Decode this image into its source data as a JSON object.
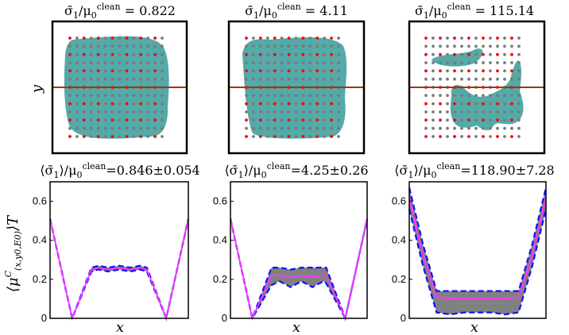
{
  "colors": {
    "fill": "#53aaa8",
    "dot_red": "#ff0000",
    "dot_gray": "#7a7a7a",
    "cut_line": "#9a3b0f",
    "band": "#808080",
    "mean": "#ff33ff",
    "envelope": "#1010ff",
    "frame": "#000000"
  },
  "axis_labels": {
    "y_top": "y",
    "x_bottom": "x",
    "y_bottom": "⟨μ^C_(x,y0,E0)⟩T"
  },
  "chart_data": [
    {
      "type": "map",
      "panel": 1,
      "title": "σ̄1/μ0^clean = 0.822",
      "title_value": "0.822",
      "description_region": "compact blob"
    },
    {
      "type": "map",
      "panel": 2,
      "title": "σ̄1/μ0^clean = 4.11",
      "title_value": "4.11",
      "description_region": "compact blob"
    },
    {
      "type": "map",
      "panel": 3,
      "title": "σ̄1/μ0^clean = 115.14",
      "title_value": "115.14",
      "description_region": "fragmented"
    },
    {
      "type": "line",
      "panel": 4,
      "title": "⟨σ̄1⟩/μ0^clean =0.846±0.054",
      "title_value": "=0.846±0.054",
      "xlabel": "x",
      "ylabel": "⟨μ^C⟩T",
      "ylim": [
        0,
        0.7
      ],
      "yticks": [
        0,
        0.2,
        0.4,
        0.6
      ],
      "series": [
        {
          "name": "mean",
          "x": [
            0,
            0.16,
            0.3,
            0.35,
            0.42,
            0.5,
            0.58,
            0.65,
            0.7,
            0.84,
            1
          ],
          "values": [
            0.51,
            0,
            0.25,
            0.26,
            0.25,
            0.26,
            0.25,
            0.26,
            0.25,
            0,
            0.51
          ]
        },
        {
          "name": "upper",
          "x": [
            0,
            0.16,
            0.3,
            0.35,
            0.42,
            0.5,
            0.58,
            0.65,
            0.7,
            0.84,
            1
          ],
          "values": [
            0.51,
            0,
            0.26,
            0.27,
            0.26,
            0.27,
            0.26,
            0.27,
            0.26,
            0,
            0.51
          ]
        },
        {
          "name": "lower",
          "x": [
            0,
            0.16,
            0.3,
            0.35,
            0.42,
            0.5,
            0.58,
            0.65,
            0.7,
            0.84,
            1
          ],
          "values": [
            0.51,
            0,
            0.24,
            0.25,
            0.24,
            0.25,
            0.24,
            0.25,
            0.24,
            0,
            0.51
          ]
        }
      ]
    },
    {
      "type": "line",
      "panel": 5,
      "title": "⟨σ̄1⟩/μ0^clean =4.25±0.26",
      "title_value": "=4.25±0.26",
      "xlabel": "x",
      "ylim": [
        0,
        0.7
      ],
      "yticks": [
        0,
        0.2,
        0.4,
        0.6
      ],
      "series": [
        {
          "name": "mean",
          "x": [
            0,
            0.16,
            0.3,
            0.36,
            0.44,
            0.52,
            0.6,
            0.68,
            0.7,
            0.84,
            1
          ],
          "values": [
            0.51,
            0,
            0.22,
            0.22,
            0.21,
            0.22,
            0.21,
            0.22,
            0.22,
            0,
            0.51
          ]
        },
        {
          "name": "upper",
          "x": [
            0,
            0.16,
            0.3,
            0.36,
            0.44,
            0.52,
            0.6,
            0.68,
            0.7,
            0.84,
            1
          ],
          "values": [
            0.51,
            0,
            0.26,
            0.26,
            0.25,
            0.26,
            0.26,
            0.26,
            0.26,
            0,
            0.51
          ]
        },
        {
          "name": "lower",
          "x": [
            0,
            0.16,
            0.3,
            0.36,
            0.44,
            0.52,
            0.6,
            0.68,
            0.7,
            0.84,
            1
          ],
          "values": [
            0.51,
            0,
            0.17,
            0.19,
            0.16,
            0.19,
            0.16,
            0.19,
            0.18,
            0,
            0.51
          ]
        }
      ]
    },
    {
      "type": "line",
      "panel": 6,
      "title": "⟨σ̄1⟩/μ0^clean =118.90±7.28",
      "title_value": "=118.90±7.28",
      "xlabel": "x",
      "ylim": [
        0,
        0.7
      ],
      "yticks": [
        0,
        0.2,
        0.4,
        0.6
      ],
      "series": [
        {
          "name": "mean",
          "x": [
            0,
            0.1,
            0.2,
            0.3,
            0.4,
            0.5,
            0.6,
            0.7,
            0.8,
            0.9,
            1
          ],
          "values": [
            0.62,
            0.32,
            0.11,
            0.1,
            0.1,
            0.1,
            0.1,
            0.1,
            0.11,
            0.32,
            0.62
          ]
        },
        {
          "name": "upper",
          "x": [
            0,
            0.1,
            0.2,
            0.3,
            0.4,
            0.5,
            0.6,
            0.7,
            0.8,
            0.9,
            1
          ],
          "values": [
            0.67,
            0.38,
            0.14,
            0.14,
            0.14,
            0.14,
            0.14,
            0.14,
            0.14,
            0.38,
            0.67
          ]
        },
        {
          "name": "lower",
          "x": [
            0,
            0.1,
            0.2,
            0.3,
            0.4,
            0.5,
            0.6,
            0.7,
            0.8,
            0.9,
            1
          ],
          "values": [
            0.56,
            0.27,
            0.03,
            0.02,
            0.03,
            0.03,
            0.03,
            0.02,
            0.03,
            0.27,
            0.56
          ]
        }
      ]
    }
  ]
}
